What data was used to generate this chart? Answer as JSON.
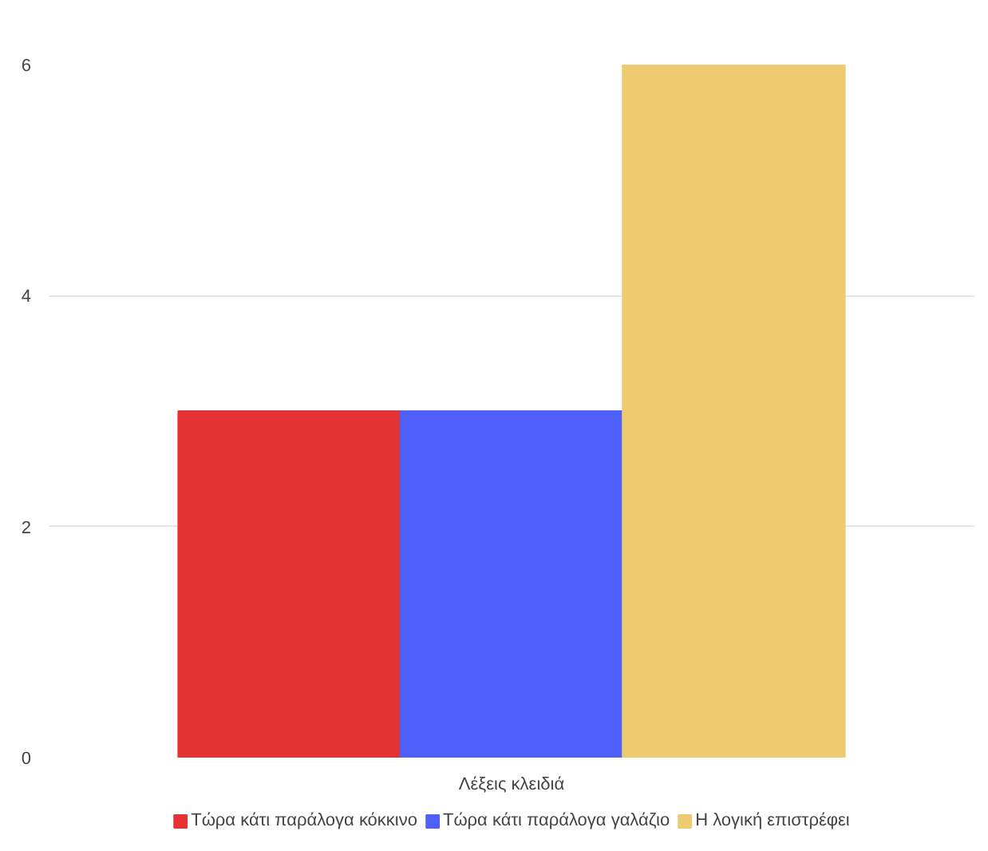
{
  "chart_data": {
    "type": "bar",
    "categories": [
      "Λέξεις κλειδιά"
    ],
    "series": [
      {
        "name": "Τώρα κάτι παράλογα κόκκινο",
        "color": "#e53333",
        "values": [
          3
        ]
      },
      {
        "name": "Τώρα κάτι παράλογα γαλάζιο",
        "color": "#4f5ffa",
        "values": [
          3
        ]
      },
      {
        "name": "Η λογική επιστρέφει",
        "color": "#eecb6e",
        "values": [
          6
        ]
      }
    ],
    "ylim": [
      0,
      6
    ],
    "yticks": [
      0,
      2,
      4,
      6
    ],
    "grid": "y",
    "legend": "bottom"
  }
}
